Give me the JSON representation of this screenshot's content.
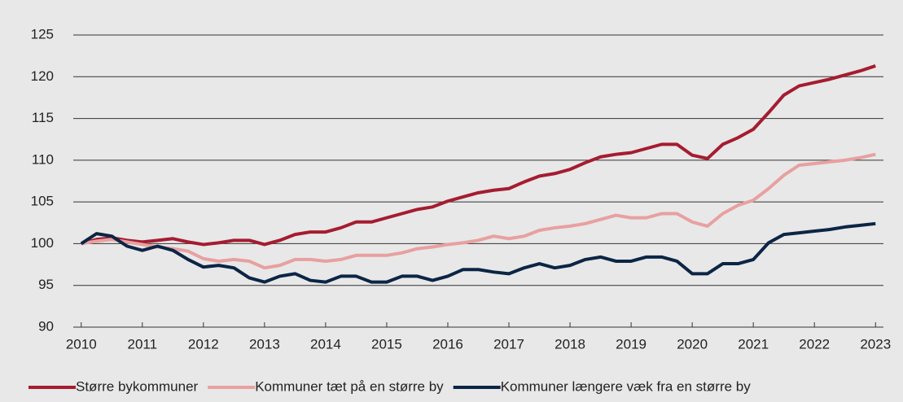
{
  "chart_data": {
    "type": "line",
    "x": [
      2010,
      2010.25,
      2010.5,
      2010.75,
      2011,
      2011.25,
      2011.5,
      2011.75,
      2012,
      2012.25,
      2012.5,
      2012.75,
      2013,
      2013.25,
      2013.5,
      2013.75,
      2014,
      2014.25,
      2014.5,
      2014.75,
      2015,
      2015.25,
      2015.5,
      2015.75,
      2016,
      2016.25,
      2016.5,
      2016.75,
      2017,
      2017.25,
      2017.5,
      2017.75,
      2018,
      2018.25,
      2018.5,
      2018.75,
      2019,
      2019.25,
      2019.5,
      2019.75,
      2020,
      2020.25,
      2020.5,
      2020.75,
      2021,
      2021.25,
      2021.5,
      2021.75,
      2022,
      2022.25,
      2022.5,
      2022.75,
      2023
    ],
    "series": [
      {
        "name": "Større bykommuner",
        "color": "#a51c30",
        "values": [
          100,
          100.5,
          100.7,
          100.4,
          100.2,
          100.4,
          100.6,
          100.2,
          99.9,
          100.1,
          100.4,
          100.4,
          99.9,
          100.4,
          101.1,
          101.4,
          101.4,
          101.9,
          102.6,
          102.6,
          103.1,
          103.6,
          104.1,
          104.4,
          105.1,
          105.6,
          106.1,
          106.4,
          106.6,
          107.4,
          108.1,
          108.4,
          108.9,
          109.7,
          110.4,
          110.7,
          110.9,
          111.4,
          111.9,
          111.9,
          110.6,
          110.2,
          111.9,
          112.7,
          113.7,
          115.7,
          117.8,
          118.9,
          119.3,
          119.7,
          120.2,
          120.7,
          121.3
        ]
      },
      {
        "name": "Kommuner tæt på en større by",
        "color": "#e8a0a0",
        "values": [
          100,
          100.3,
          100.5,
          100.2,
          99.9,
          99.6,
          99.4,
          99.1,
          98.2,
          97.9,
          98.1,
          97.9,
          97.1,
          97.4,
          98.1,
          98.1,
          97.9,
          98.1,
          98.6,
          98.6,
          98.6,
          98.9,
          99.4,
          99.6,
          99.9,
          100.1,
          100.4,
          100.9,
          100.6,
          100.9,
          101.6,
          101.9,
          102.1,
          102.4,
          102.9,
          103.4,
          103.1,
          103.1,
          103.6,
          103.6,
          102.6,
          102.1,
          103.6,
          104.6,
          105.2,
          106.6,
          108.2,
          109.4,
          109.6,
          109.8,
          110.0,
          110.3,
          110.7
        ]
      },
      {
        "name": "Kommuner længere væk fra en større by",
        "color": "#0b2545",
        "values": [
          100,
          101.2,
          100.9,
          99.7,
          99.2,
          99.7,
          99.2,
          98.1,
          97.2,
          97.4,
          97.1,
          95.9,
          95.4,
          96.1,
          96.4,
          95.6,
          95.4,
          96.1,
          96.1,
          95.4,
          95.4,
          96.1,
          96.1,
          95.6,
          96.1,
          96.9,
          96.9,
          96.6,
          96.4,
          97.1,
          97.6,
          97.1,
          97.4,
          98.1,
          98.4,
          97.9,
          97.9,
          98.4,
          98.4,
          97.9,
          96.4,
          96.4,
          97.6,
          97.6,
          98.1,
          100.1,
          101.1,
          101.3,
          101.5,
          101.7,
          102.0,
          102.2,
          102.4
        ]
      }
    ],
    "xlim": [
      2009.87,
      2023.13
    ],
    "xticks": [
      2010,
      2011,
      2012,
      2013,
      2014,
      2015,
      2016,
      2017,
      2018,
      2019,
      2020,
      2021,
      2022,
      2023
    ],
    "ylim": [
      90,
      125
    ],
    "yticks": [
      90,
      95,
      100,
      105,
      110,
      115,
      120,
      125
    ],
    "grid": true,
    "legend": "bottom"
  }
}
